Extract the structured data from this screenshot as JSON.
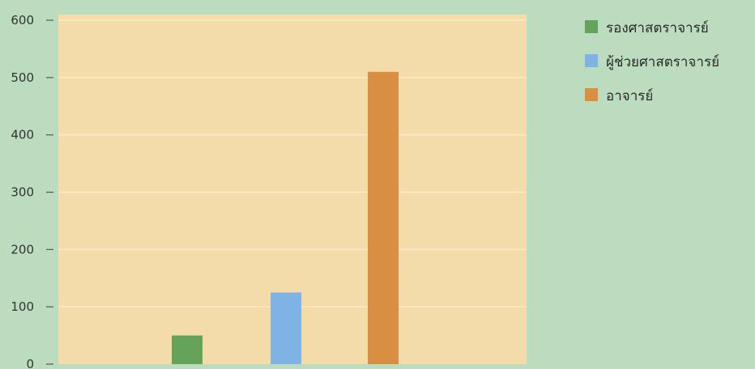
{
  "colors": {
    "page_background": "#bcdcc0",
    "plot_background": "#f4dcaa",
    "gridline": "#fbebc8",
    "axis_tick": "#555555"
  },
  "chart_data": {
    "type": "bar",
    "title": "",
    "xlabel": "",
    "ylabel": "",
    "ylim": [
      0,
      600
    ],
    "yticks": [
      0,
      100,
      200,
      300,
      400,
      500,
      600
    ],
    "grid": true,
    "legend_position": "right",
    "series": [
      {
        "name": "รองศาสตราจารย์",
        "value": 50,
        "color": "#65a35a"
      },
      {
        "name": "ผู้ช่วยศาสตราจารย์",
        "value": 125,
        "color": "#7fb3e6"
      },
      {
        "name": "อาจารย์",
        "value": 510,
        "color": "#d98f42"
      }
    ]
  }
}
